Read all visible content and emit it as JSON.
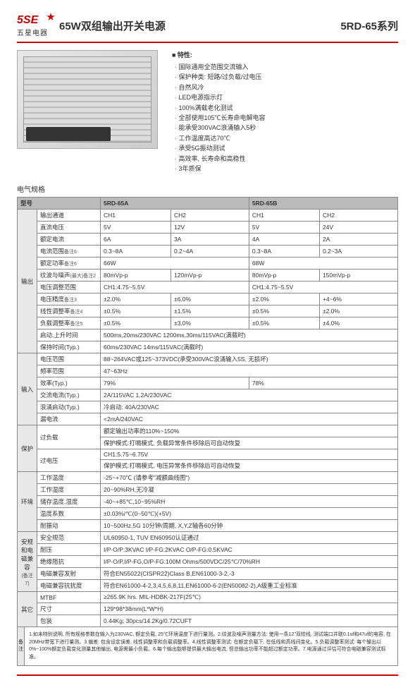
{
  "logo": {
    "top": "5SE",
    "bottom": "五星电器"
  },
  "title": "65W双组输出开关电源",
  "series": "5RD-65系列",
  "features_title": "■ 特性:",
  "features": [
    "国际通用全范围交流输入",
    "保护种类: 短路/过负载/过电压",
    "自然风冷",
    "LED电源指示灯",
    "100%满载老化测试",
    "全部使用105℃长寿命电解电容",
    "能承受300VAC浪涌输入5秒",
    "工作温度高达70℃",
    "承受5G振动测试",
    "高效率, 长寿命和高稳性",
    "3年质保"
  ],
  "spec_label": "电气规格",
  "col_headers": {
    "model": "型号",
    "m1": "5RD-65A",
    "m2": "5RD-65B"
  },
  "sections": {
    "output": "输出",
    "input": "输入",
    "protect": "保护",
    "env": "环境",
    "safety": "安规和电磁兼容",
    "safety_note": "(备注7)",
    "other": "其它",
    "notes": "备注"
  },
  "rows": {
    "ch": {
      "label": "输出通道",
      "a1": "CH1",
      "a2": "CH2",
      "b1": "CH1",
      "b2": "CH2"
    },
    "vdc": {
      "label": "直流电压",
      "a1": "5V",
      "a2": "12V",
      "b1": "5V",
      "b2": "24V"
    },
    "irated": {
      "label": "额定电流",
      "a1": "6A",
      "a2": "3A",
      "b1": "4A",
      "b2": "2A"
    },
    "irange": {
      "label": "电流范围",
      "note": "备注6",
      "a1": "0.3~8A",
      "a2": "0.2~4A",
      "b1": "0.3~8A",
      "b2": "0.2~3A"
    },
    "prated": {
      "label": "额定功率",
      "note": "备注6",
      "a": "66W",
      "b": "68W"
    },
    "ripple": {
      "label": "纹波与噪声",
      "note": "(最大)备注2",
      "a1": "80mVp-p",
      "a2": "120mVp-p",
      "b1": "80mVp-p",
      "b2": "150mVp-p"
    },
    "vadj": {
      "label": "电压调整范围",
      "val": "CH1:4.75~5.5V",
      "val2": "CH1:4.75~5.5V"
    },
    "vacc": {
      "label": "电压精度",
      "note": "备注3",
      "a1": "±2.0%",
      "a2": "±6.0%",
      "b1": "±2.0%",
      "b2": "+4~6%"
    },
    "line": {
      "label": "线性调整率",
      "note": "备注4",
      "a1": "±0.5%",
      "a2": "±1.5%",
      "b1": "±0.5%",
      "b2": "±2.0%"
    },
    "load": {
      "label": "负载调整率",
      "note": "备注5",
      "a1": "±0.5%",
      "a2": "±3.0%",
      "b1": "±0.5%",
      "b2": "±4.0%"
    },
    "setup": {
      "label": "启动,上升时间",
      "val": "500ms,20ms/230VAC  1200ms,30ms/115VAC(满载时)"
    },
    "hold": {
      "label": "保持时间(Typ.)",
      "val": "60ms/230VAC  14ms/115VAC(满载时)"
    },
    "vin": {
      "label": "电压范围",
      "val": "88~264VAC或125~373VDC(承受300VAC浪涌输入5S, 无损坏)"
    },
    "freq": {
      "label": "频率范围",
      "val": "47~63Hz"
    },
    "eff": {
      "label": "效率(Typ.)",
      "a": "79%",
      "b": "78%"
    },
    "iac": {
      "label": "交流电流(Typ.)",
      "val": "2A/115VAC    1.2A/230VAC"
    },
    "inrush": {
      "label": "浪涌启动(Typ.)",
      "val": "冷启动: 40A/230VAC"
    },
    "leak": {
      "label": "漏电流",
      "val": "<2mA/240VAC"
    },
    "ol": {
      "label": "过负载",
      "v1": "额定输出功率的110%~150%",
      "v2": "保护模式:打嗝模式, 负载异常条件移除后可自动恢复"
    },
    "ov": {
      "label": "过电压",
      "v1": "CH1:5.75~6.75V",
      "v2": "保护模式:打嗝模式, 电压异常条件移除后可自动恢复"
    },
    "twork": {
      "label": "工作温度",
      "val": "-25~+70℃ (请参考\"减额曲线图\")"
    },
    "hwork": {
      "label": "工作湿度",
      "val": "20~90%RH,无冷凝"
    },
    "tstore": {
      "label": "储存温度,湿度",
      "val": "-40~+85℃,10~95%RH"
    },
    "tcoef": {
      "label": "温度系数",
      "val": "±0.03%/℃(0~50℃)(+5V)"
    },
    "vib": {
      "label": "耐振动",
      "val": "10~500Hz,5G 10分钟/周期, X,Y,Z轴各60分钟"
    },
    "safe": {
      "label": "安全规范",
      "val": "UL60950-1, TUV EN60950认证通过"
    },
    "wv": {
      "label": "耐压",
      "val": "I/P-O/P:3KVAC   I/P-FG:2KVAC   O/P-FG:0.5KVAC"
    },
    "ins": {
      "label": "绝缘阻抗",
      "val": "I/P-O/P,I/P-FG,O/P-FG:100M  Ohms/500VDC/25℃/70%RH"
    },
    "emc1": {
      "label": "电磁兼容发射",
      "val": "符合EN55022(CISPR22)Class B,EN61000-3-2,-3"
    },
    "emc2": {
      "label": "电磁兼容抗扰度",
      "val": "符合EN61000-4-2,3,4,5,6,8,11,EN61000-6-2(EN50082-2),A级重工业标准"
    },
    "mtbf": {
      "label": "MTBF",
      "val": "≥265.9K hrs.    MIL-HDBK-217F(25℃)"
    },
    "size": {
      "label": "尺寸",
      "val": "129*98*38mm(L*W*H)"
    },
    "pack": {
      "label": "包装",
      "val": "0.44Kg; 30pcs/14.2Kg/0.72CUFT"
    }
  },
  "notes_text": "1.如未特别说明, 所有规格参数在输入为230VAC, 额定负载, 25℃环境温度下进行量测。2.纹波及噪声测量方法: 使用一条12\"双绞线, 测试端口并联0.1uf和47uf的电容, 在20MHz带宽下进行量测。3.偏差: 包含设定误差, 线性调整率和负载调整率。4.线性调整率测试: 在额定负载下, 在低线和高线间变化。5.负载调整率测试: 每个输出以0%~100%额定负载变化测量其他输出, 电源需最小负载。6.每个输出能够提供最大输出电流, 但总输出功率不能超过额定功率。7.电源通过评估可符合电磁兼容测试标准。"
}
